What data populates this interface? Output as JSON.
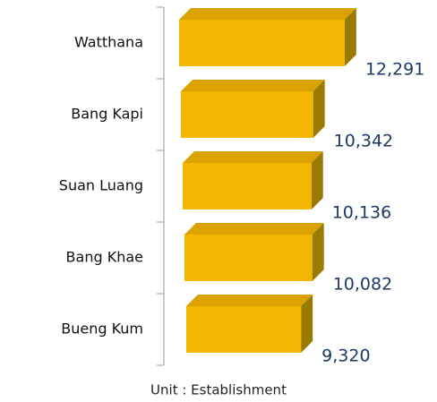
{
  "chart_data": {
    "type": "bar3d_horizontal",
    "categories": [
      "Watthana",
      "Bang Kapi",
      "Suan Luang",
      "Bang Khae",
      "Bueng Kum"
    ],
    "values": [
      12291,
      10342,
      10136,
      10082,
      9320
    ],
    "value_labels": [
      "12,291",
      "10,342",
      "10,136",
      "10,082",
      "9,320"
    ],
    "color": "#f2b600",
    "xlim": [
      2600,
      12300
    ],
    "annotation": "Unit : Establishment"
  }
}
